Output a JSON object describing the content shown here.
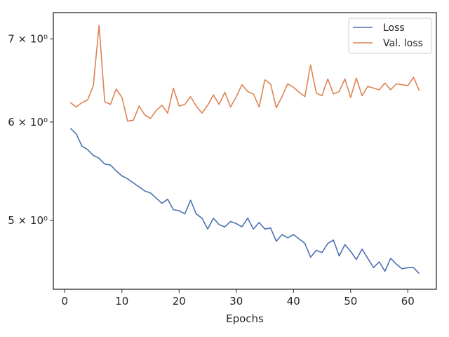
{
  "chart_data": {
    "type": "line",
    "title": "",
    "xlabel": "Epochs",
    "ylabel": "",
    "yscale": "log",
    "xlim": [
      -2,
      65
    ],
    "ylim": [
      4.4,
      7.35
    ],
    "grid": false,
    "legend_position": "top-right",
    "x_ticks": [
      0,
      10,
      20,
      30,
      40,
      50,
      60
    ],
    "y_ticks": [
      {
        "value": 5,
        "label": "5 × 10⁰"
      },
      {
        "value": 6,
        "label": "6 × 10⁰"
      },
      {
        "value": 7,
        "label": "7 × 10⁰"
      }
    ],
    "x": [
      1,
      2,
      3,
      4,
      5,
      6,
      7,
      8,
      9,
      10,
      11,
      12,
      13,
      14,
      15,
      16,
      17,
      18,
      19,
      20,
      21,
      22,
      23,
      24,
      25,
      26,
      27,
      28,
      29,
      30,
      31,
      32,
      33,
      34,
      35,
      36,
      37,
      38,
      39,
      40,
      41,
      42,
      43,
      44,
      45,
      46,
      47,
      48,
      49,
      50,
      51,
      52,
      53,
      54,
      55,
      56,
      57,
      58,
      59,
      60,
      61,
      62
    ],
    "series": [
      {
        "name": "Loss",
        "color": "#4c72b0",
        "values": [
          5.93,
          5.87,
          5.74,
          5.7,
          5.64,
          5.61,
          5.55,
          5.54,
          5.48,
          5.43,
          5.4,
          5.36,
          5.32,
          5.28,
          5.26,
          5.21,
          5.16,
          5.2,
          5.1,
          5.09,
          5.06,
          5.19,
          5.06,
          5.02,
          4.92,
          5.02,
          4.96,
          4.94,
          4.99,
          4.97,
          4.94,
          5.02,
          4.92,
          4.98,
          4.92,
          4.93,
          4.81,
          4.87,
          4.84,
          4.87,
          4.83,
          4.79,
          4.67,
          4.73,
          4.71,
          4.79,
          4.82,
          4.68,
          4.78,
          4.72,
          4.65,
          4.74,
          4.66,
          4.58,
          4.63,
          4.55,
          4.66,
          4.61,
          4.57,
          4.58,
          4.58,
          4.53
        ]
      },
      {
        "name": "Val. loss",
        "color": "#dd8452",
        "values": [
          6.22,
          6.17,
          6.22,
          6.25,
          6.42,
          7.18,
          6.23,
          6.2,
          6.38,
          6.28,
          6.01,
          6.02,
          6.18,
          6.08,
          6.04,
          6.13,
          6.19,
          6.1,
          6.39,
          6.18,
          6.2,
          6.29,
          6.18,
          6.1,
          6.19,
          6.31,
          6.2,
          6.34,
          6.17,
          6.29,
          6.43,
          6.35,
          6.32,
          6.17,
          6.49,
          6.44,
          6.16,
          6.29,
          6.44,
          6.4,
          6.34,
          6.29,
          6.67,
          6.33,
          6.3,
          6.5,
          6.32,
          6.35,
          6.5,
          6.28,
          6.51,
          6.3,
          6.41,
          6.39,
          6.37,
          6.45,
          6.37,
          6.44,
          6.43,
          6.42,
          6.52,
          6.36
        ]
      }
    ]
  }
}
